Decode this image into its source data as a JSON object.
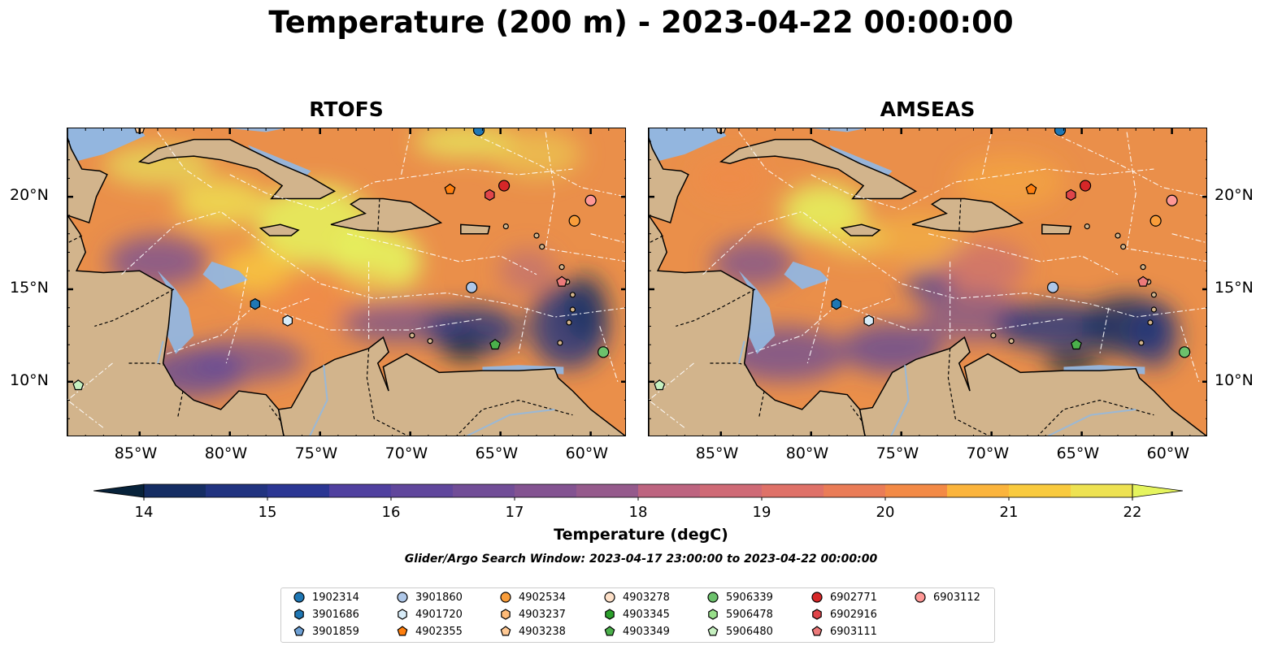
{
  "title": "Temperature (200 m) - 2023-04-22 00:00:00",
  "panels": [
    {
      "title": "RTOFS"
    },
    {
      "title": "AMSEAS"
    }
  ],
  "lon_ticks": [
    "85°W",
    "80°W",
    "75°W",
    "70°W",
    "65°W",
    "60°W"
  ],
  "lat_ticks": [
    "20°N",
    "15°N",
    "10°N"
  ],
  "colorbar": {
    "label": "Temperature (degC)",
    "ticks": [
      "14",
      "15",
      "16",
      "17",
      "18",
      "19",
      "20",
      "21",
      "22"
    ],
    "min": 14,
    "max": 22,
    "extend": "both",
    "colors": [
      "#07223a",
      "#152d63",
      "#213380",
      "#2b3693",
      "#3c3a9f",
      "#50409f",
      "#60469c",
      "#714d97",
      "#835391",
      "#955a8c",
      "#a95f86",
      "#bd6480",
      "#cf6a76",
      "#df7168",
      "#ea7c57",
      "#f38a46",
      "#f89d3e",
      "#fbb43c",
      "#f9ca3e",
      "#eee252",
      "#e5f45e"
    ]
  },
  "search_window": "Glider/Argo Search Window: 2023-04-17 23:00:00 to 2023-04-22 00:00:00",
  "legend": {
    "items": [
      {
        "id": "1902314",
        "marker": "circle",
        "color": "#1f77b4"
      },
      {
        "id": "3901686",
        "marker": "hexagon",
        "color": "#1f77b4"
      },
      {
        "id": "3901859",
        "marker": "pentagon",
        "color": "#6d9fd3"
      },
      {
        "id": "3901860",
        "marker": "circle",
        "color": "#aec7e8"
      },
      {
        "id": "4901720",
        "marker": "hexagon",
        "color": "#d8ecf8"
      },
      {
        "id": "4902355",
        "marker": "pentagon",
        "color": "#ff7f0e"
      },
      {
        "id": "4902534",
        "marker": "circle",
        "color": "#f99d3a"
      },
      {
        "id": "4903237",
        "marker": "hexagon",
        "color": "#ffbb78"
      },
      {
        "id": "4903238",
        "marker": "pentagon",
        "color": "#ffc994"
      },
      {
        "id": "4903278",
        "marker": "circle",
        "color": "#fde0c8"
      },
      {
        "id": "4903345",
        "marker": "hexagon",
        "color": "#2ca02c"
      },
      {
        "id": "4903349",
        "marker": "pentagon",
        "color": "#4bb04b"
      },
      {
        "id": "5906339",
        "marker": "circle",
        "color": "#6cc16c"
      },
      {
        "id": "5906478",
        "marker": "hexagon",
        "color": "#98df8a"
      },
      {
        "id": "5906480",
        "marker": "pentagon",
        "color": "#c6f0c0"
      },
      {
        "id": "6902771",
        "marker": "circle",
        "color": "#d62728"
      },
      {
        "id": "6902916",
        "marker": "hexagon",
        "color": "#e0454a"
      },
      {
        "id": "6903111",
        "marker": "pentagon",
        "color": "#ec7a7a"
      },
      {
        "id": "6903112",
        "marker": "circle",
        "color": "#ff9896"
      }
    ]
  },
  "floats": [
    {
      "id": "1902314",
      "lon": -66.2,
      "lat": 23.6
    },
    {
      "id": "3901686",
      "lon": -78.6,
      "lat": 14.2
    },
    {
      "id": "3901860",
      "lon": -66.6,
      "lat": 15.1
    },
    {
      "id": "4901720",
      "lon": -76.8,
      "lat": 13.3
    },
    {
      "id": "4902355",
      "lon": -67.8,
      "lat": 20.4
    },
    {
      "id": "4902534",
      "lon": -60.9,
      "lat": 18.7
    },
    {
      "id": "4903238",
      "lon": -85.0,
      "lat": 23.7
    },
    {
      "id": "4903349",
      "lon": -65.3,
      "lat": 12.0
    },
    {
      "id": "5906339",
      "lon": -59.3,
      "lat": 11.6
    },
    {
      "id": "5906480",
      "lon": -88.4,
      "lat": 9.8
    },
    {
      "id": "6902771",
      "lon": -64.8,
      "lat": 20.6
    },
    {
      "id": "6902916",
      "lon": -65.6,
      "lat": 20.1
    },
    {
      "id": "6903111",
      "lon": -61.6,
      "lat": 15.4
    },
    {
      "id": "6903112",
      "lon": -60.0,
      "lat": 19.8
    }
  ]
}
